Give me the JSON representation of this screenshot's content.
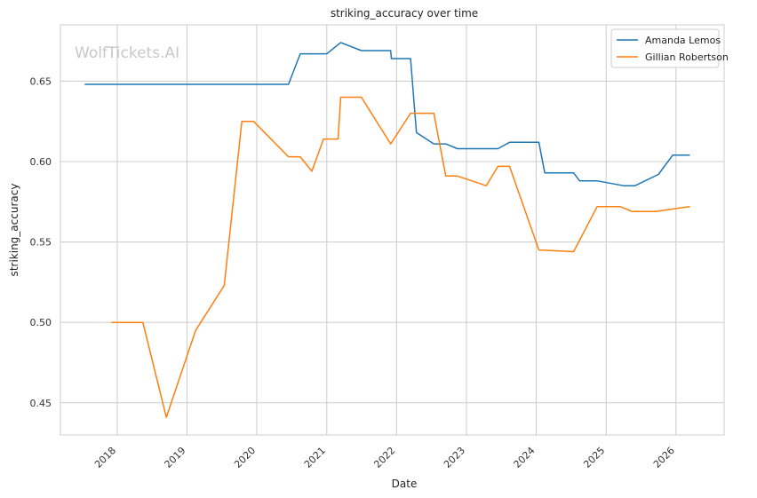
{
  "watermark": "WolfTickets.AI",
  "chart_data": {
    "type": "line",
    "title": "striking_accuracy over time",
    "xlabel": "Date",
    "ylabel": "striking_accuracy",
    "x_axis_type": "date",
    "xlim": [
      "2017-03-10",
      "2026-09-10"
    ],
    "ylim": [
      0.43,
      0.685
    ],
    "x_ticks": [
      "2018",
      "2019",
      "2020",
      "2021",
      "2022",
      "2023",
      "2024",
      "2025",
      "2026"
    ],
    "y_ticks": [
      "0.45",
      "0.50",
      "0.55",
      "0.60",
      "0.65"
    ],
    "grid": true,
    "legend_position": "top-right",
    "colors": {
      "Amanda Lemos": "#1f77b4",
      "Gillian Robertson": "#ff7f0e",
      "grid": "#cccccc",
      "frame": "#cccccc"
    },
    "series": [
      {
        "name": "Amanda Lemos",
        "points": [
          [
            "2017-07-15",
            0.648
          ],
          [
            "2020-06-15",
            0.648
          ],
          [
            "2020-08-15",
            0.667
          ],
          [
            "2021-01-01",
            0.667
          ],
          [
            "2021-03-15",
            0.674
          ],
          [
            "2021-07-01",
            0.669
          ],
          [
            "2021-12-01",
            0.669
          ],
          [
            "2021-12-05",
            0.664
          ],
          [
            "2022-03-15",
            0.664
          ],
          [
            "2022-04-15",
            0.618
          ],
          [
            "2022-07-15",
            0.611
          ],
          [
            "2022-09-15",
            0.611
          ],
          [
            "2022-11-15",
            0.608
          ],
          [
            "2023-06-15",
            0.608
          ],
          [
            "2023-08-15",
            0.612
          ],
          [
            "2024-01-15",
            0.612
          ],
          [
            "2024-02-15",
            0.593
          ],
          [
            "2024-07-15",
            0.593
          ],
          [
            "2024-08-15",
            0.588
          ],
          [
            "2024-11-15",
            0.588
          ],
          [
            "2025-04-01",
            0.585
          ],
          [
            "2025-06-01",
            0.585
          ],
          [
            "2025-10-01",
            0.592
          ],
          [
            "2025-12-15",
            0.604
          ],
          [
            "2026-03-15",
            0.604
          ]
        ]
      },
      {
        "name": "Gillian Robertson",
        "points": [
          [
            "2017-12-01",
            0.5
          ],
          [
            "2018-05-15",
            0.5
          ],
          [
            "2018-09-15",
            0.441
          ],
          [
            "2019-02-15",
            0.495
          ],
          [
            "2019-07-15",
            0.523
          ],
          [
            "2019-10-15",
            0.625
          ],
          [
            "2019-12-15",
            0.625
          ],
          [
            "2020-06-15",
            0.603
          ],
          [
            "2020-08-15",
            0.603
          ],
          [
            "2020-10-15",
            0.594
          ],
          [
            "2020-12-15",
            0.614
          ],
          [
            "2021-03-01",
            0.614
          ],
          [
            "2021-03-15",
            0.64
          ],
          [
            "2021-07-01",
            0.64
          ],
          [
            "2021-12-01",
            0.611
          ],
          [
            "2022-03-15",
            0.63
          ],
          [
            "2022-07-15",
            0.63
          ],
          [
            "2022-09-15",
            0.591
          ],
          [
            "2022-11-15",
            0.591
          ],
          [
            "2023-04-15",
            0.585
          ],
          [
            "2023-06-15",
            0.597
          ],
          [
            "2023-08-15",
            0.597
          ],
          [
            "2024-01-15",
            0.545
          ],
          [
            "2024-07-15",
            0.544
          ],
          [
            "2024-11-15",
            0.572
          ],
          [
            "2025-03-15",
            0.572
          ],
          [
            "2025-05-15",
            0.569
          ],
          [
            "2025-09-15",
            0.569
          ],
          [
            "2026-03-15",
            0.572
          ]
        ]
      }
    ]
  }
}
